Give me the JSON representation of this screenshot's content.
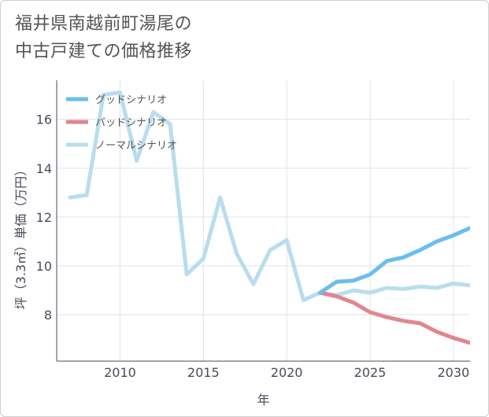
{
  "title": {
    "line1": "福井県南越前町湯尾の",
    "line2": "中古戸建ての価格推移"
  },
  "chart_data": {
    "type": "line",
    "title": "福井県南越前町湯尾の中古戸建ての価格推移",
    "xlabel": "年",
    "ylabel": "坪（3.3㎡）単価（万円）",
    "xlim": [
      2006.2,
      2031
    ],
    "ylim": [
      6.1,
      17.6
    ],
    "xticks": [
      2010,
      2015,
      2020,
      2025,
      2030
    ],
    "yticks": [
      8,
      10,
      12,
      14,
      16
    ],
    "grid": true,
    "legend_position": "top-left",
    "series": [
      {
        "name": "グッドシナリオ",
        "color": "#6cbdef",
        "x": [
          2022,
          2023,
          2024,
          2025,
          2026,
          2027,
          2028,
          2029,
          2030,
          2031
        ],
        "values": [
          8.9,
          9.35,
          9.4,
          9.65,
          10.2,
          10.35,
          10.65,
          11.0,
          11.25,
          11.55
        ]
      },
      {
        "name": "バッドシナリオ",
        "color": "#e0868f",
        "x": [
          2022,
          2023,
          2024,
          2025,
          2026,
          2027,
          2028,
          2029,
          2030,
          2031
        ],
        "values": [
          8.9,
          8.75,
          8.5,
          8.1,
          7.9,
          7.75,
          7.65,
          7.3,
          7.05,
          6.85
        ]
      },
      {
        "name": "ノーマルシナリオ",
        "color": "#b9dded",
        "x": [
          2007,
          2008,
          2009,
          2010,
          2011,
          2012,
          2013,
          2014,
          2015,
          2016,
          2017,
          2018,
          2019,
          2020,
          2021,
          2022,
          2023,
          2024,
          2025,
          2026,
          2027,
          2028,
          2029,
          2030,
          2031
        ],
        "values": [
          12.8,
          12.9,
          17.0,
          17.1,
          14.3,
          16.3,
          15.8,
          9.65,
          10.3,
          12.8,
          10.5,
          9.25,
          10.65,
          11.05,
          8.6,
          8.9,
          8.8,
          9.0,
          8.9,
          9.1,
          9.05,
          9.15,
          9.1,
          9.28,
          9.2
        ]
      }
    ]
  }
}
